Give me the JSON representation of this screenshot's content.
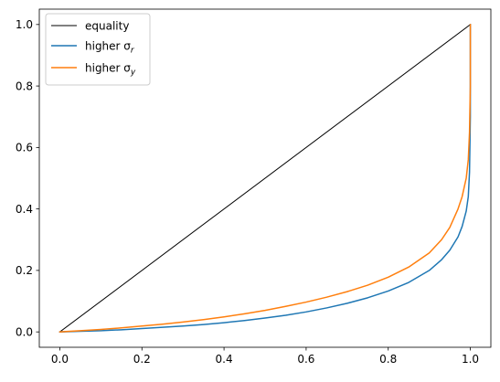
{
  "chart_data": {
    "type": "line",
    "title": "",
    "xlabel": "",
    "ylabel": "",
    "xlim": [
      -0.05,
      1.05
    ],
    "ylim": [
      -0.05,
      1.05
    ],
    "xticks": [
      0.0,
      0.2,
      0.4,
      0.6,
      0.8,
      1.0
    ],
    "yticks": [
      0.0,
      0.2,
      0.4,
      0.6,
      0.8,
      1.0
    ],
    "xtick_labels": [
      "0.0",
      "0.2",
      "0.4",
      "0.6",
      "0.8",
      "1.0"
    ],
    "ytick_labels": [
      "0.0",
      "0.2",
      "0.4",
      "0.6",
      "0.8",
      "1.0"
    ],
    "grid": false,
    "legend_position": "upper-left",
    "series": [
      {
        "name": "equality",
        "legend_base": "equality",
        "legend_sub": "",
        "color": "#000000",
        "x": [
          0.0,
          1.0
        ],
        "y": [
          0.0,
          1.0
        ]
      },
      {
        "name": "higher σr",
        "legend_base": "higher σ",
        "legend_sub": "r",
        "color": "#1f77b4",
        "x": [
          0.0,
          0.05,
          0.1,
          0.15,
          0.2,
          0.25,
          0.3,
          0.35,
          0.4,
          0.45,
          0.5,
          0.55,
          0.6,
          0.65,
          0.7,
          0.75,
          0.8,
          0.85,
          0.9,
          0.93,
          0.95,
          0.97,
          0.98,
          0.99,
          0.995,
          0.998,
          1.0,
          1.0
        ],
        "y": [
          0.0,
          0.002,
          0.004,
          0.007,
          0.011,
          0.015,
          0.019,
          0.024,
          0.03,
          0.037,
          0.045,
          0.054,
          0.065,
          0.078,
          0.093,
          0.111,
          0.133,
          0.161,
          0.2,
          0.235,
          0.266,
          0.309,
          0.343,
          0.393,
          0.44,
          0.52,
          0.7,
          1.0
        ]
      },
      {
        "name": "higher σy",
        "legend_base": "higher σ",
        "legend_sub": "y",
        "color": "#ff7f0e",
        "x": [
          0.0,
          0.05,
          0.1,
          0.15,
          0.2,
          0.25,
          0.3,
          0.35,
          0.4,
          0.45,
          0.5,
          0.55,
          0.6,
          0.65,
          0.7,
          0.75,
          0.8,
          0.85,
          0.9,
          0.93,
          0.95,
          0.97,
          0.98,
          0.99,
          0.995,
          0.998,
          1.0,
          1.0
        ],
        "y": [
          0.0,
          0.004,
          0.008,
          0.013,
          0.019,
          0.025,
          0.032,
          0.04,
          0.049,
          0.059,
          0.07,
          0.083,
          0.097,
          0.113,
          0.131,
          0.152,
          0.178,
          0.211,
          0.257,
          0.3,
          0.34,
          0.4,
          0.44,
          0.5,
          0.56,
          0.65,
          0.8,
          1.0
        ]
      }
    ]
  }
}
